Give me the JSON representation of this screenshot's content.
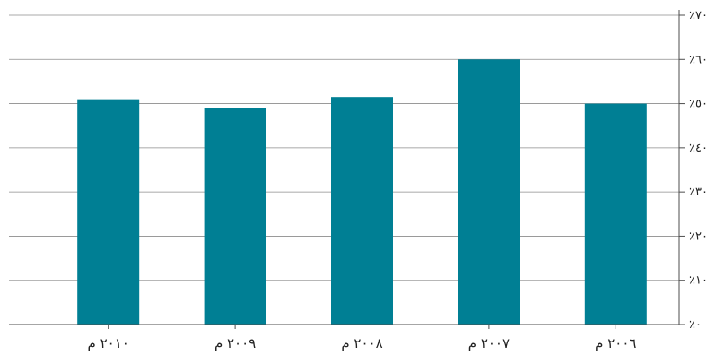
{
  "chart_data": {
    "type": "bar",
    "categories": [
      "٢٠١٠ م",
      "٢٠٠٩ م",
      "٢٠٠٨ م",
      "٢٠٠٧ م",
      "٢٠٠٦ م"
    ],
    "values": [
      51,
      49,
      51.5,
      60,
      50
    ],
    "ylim": [
      0,
      70
    ],
    "yticks": [
      0,
      10,
      20,
      30,
      40,
      50,
      60,
      70
    ],
    "ytick_labels": [
      "٪٠",
      "٪١٠",
      "٪٢٠",
      "٪٣٠",
      "٪٤٠",
      "٪٥٠",
      "٪٦٠",
      "٪٧٠"
    ],
    "y_axis_side": "right",
    "grid": true,
    "bar_color": "#007f94",
    "title": "",
    "xlabel": "",
    "ylabel": ""
  }
}
